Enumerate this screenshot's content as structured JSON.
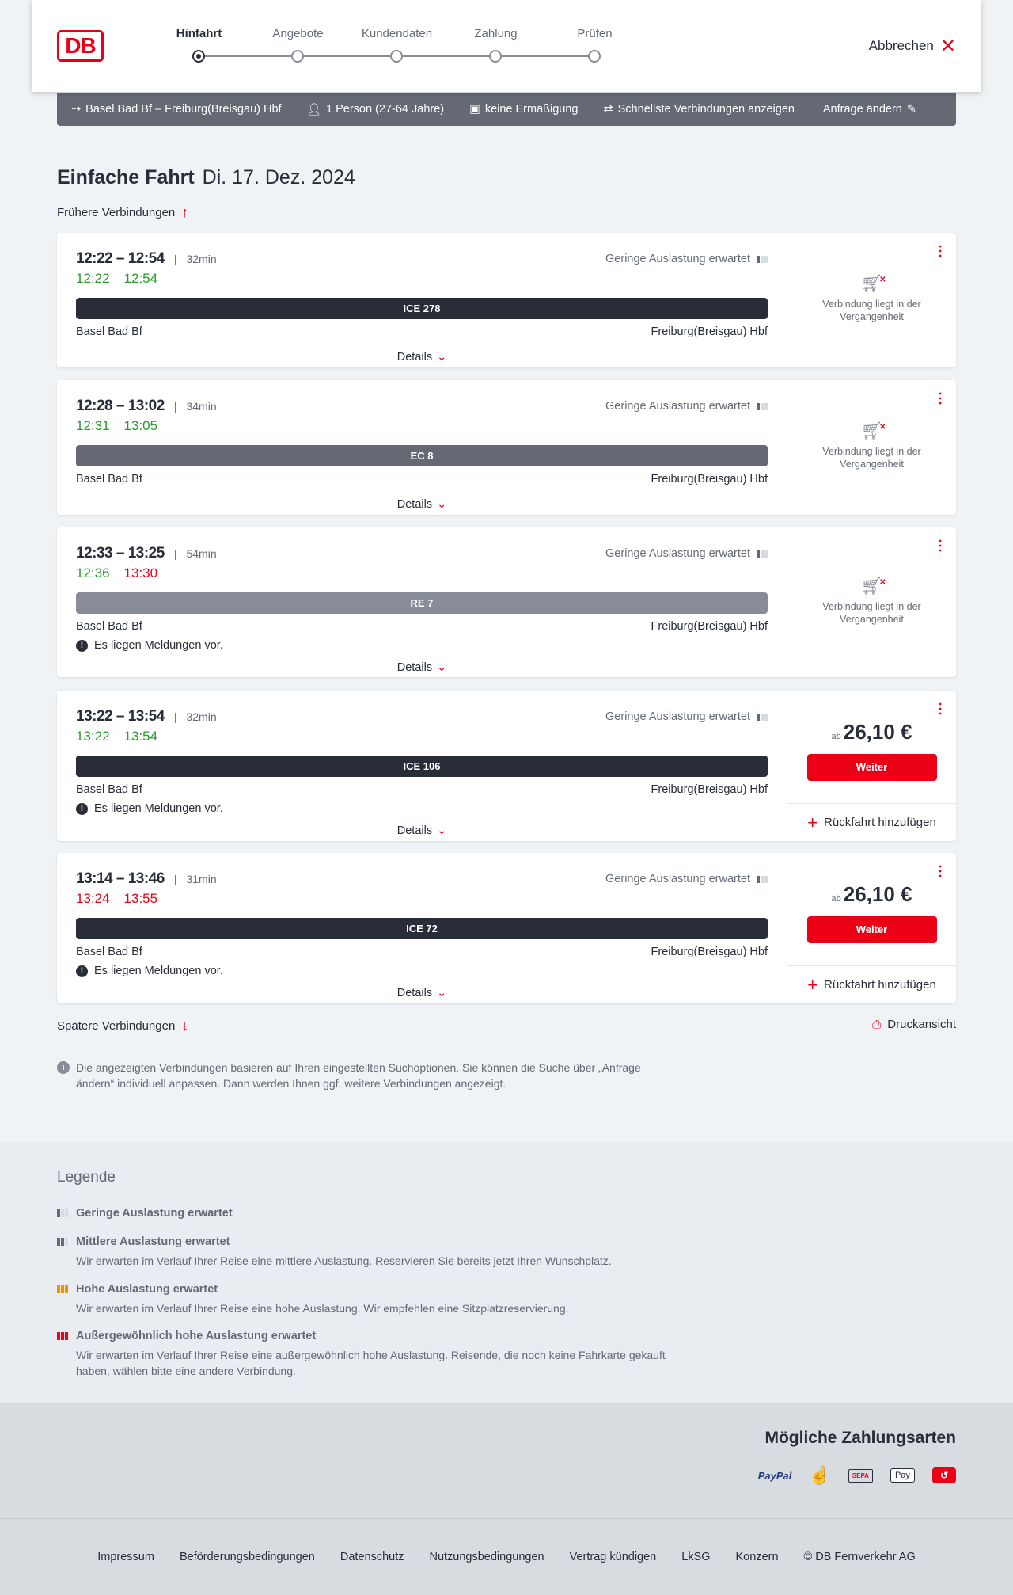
{
  "header": {
    "logo": "DB",
    "steps": [
      "Hinfahrt",
      "Angebote",
      "Kundendaten",
      "Zahlung",
      "Prüfen"
    ],
    "active_step": 0,
    "cancel": "Abbrechen"
  },
  "summary": {
    "route": "Basel Bad Bf – Freiburg(Breisgau) Hbf",
    "travellers": "1 Person (27-64 Jahre)",
    "discount": "keine Ermäßigung",
    "option": "Schnellste Verbindungen anzeigen",
    "edit": "Anfrage ändern"
  },
  "page": {
    "title": "Einfache Fahrt",
    "date": "Di. 17. Dez. 2024",
    "earlier": "Frühere Verbindungen",
    "later": "Spätere Verbindungen",
    "print": "Druckansicht",
    "info": "Die angezeigten Verbindungen basieren auf Ihren eingestellten Suchoptionen. Sie können die Suche über „Anfrage ändern“ individuell anpassen. Dann werden Ihnen ggf. weitere Verbindungen angezeigt."
  },
  "colors": {
    "accent": "#ec0016",
    "on_time": "#2a9a2a",
    "delayed": "#ec0016"
  },
  "connections": [
    {
      "times": "12:22 – 12:54",
      "duration": "32min",
      "rt_dep": "12:22",
      "rt_dep_status": "on_time",
      "rt_arr": "12:54",
      "rt_arr_status": "on_time",
      "train": "ICE 278",
      "train_color": "#282d37",
      "from": "Basel Bad Bf",
      "to": "Freiburg(Breisgau) Hbf",
      "occupancy": "Geringe Auslastung erwartet",
      "message": "",
      "details": "Details",
      "past": "Verbindung liegt in der Vergangenheit"
    },
    {
      "times": "12:28 – 13:02",
      "duration": "34min",
      "rt_dep": "12:31",
      "rt_dep_status": "on_time",
      "rt_arr": "13:05",
      "rt_arr_status": "on_time",
      "train": "EC 8",
      "train_color": "#646973",
      "from": "Basel Bad Bf",
      "to": "Freiburg(Breisgau) Hbf",
      "occupancy": "Geringe Auslastung erwartet",
      "message": "",
      "details": "Details",
      "past": "Verbindung liegt in der Vergangenheit"
    },
    {
      "times": "12:33 – 13:25",
      "duration": "54min",
      "rt_dep": "12:36",
      "rt_dep_status": "on_time",
      "rt_arr": "13:30",
      "rt_arr_status": "delayed",
      "train": "RE 7",
      "train_color": "#878c96",
      "from": "Basel Bad Bf",
      "to": "Freiburg(Breisgau) Hbf",
      "occupancy": "Geringe Auslastung erwartet",
      "message": "Es liegen Meldungen vor.",
      "details": "Details",
      "past": "Verbindung liegt in der Vergangenheit"
    },
    {
      "times": "13:22 – 13:54",
      "duration": "32min",
      "rt_dep": "13:22",
      "rt_dep_status": "on_time",
      "rt_arr": "13:54",
      "rt_arr_status": "on_time",
      "train": "ICE 106",
      "train_color": "#282d37",
      "from": "Basel Bad Bf",
      "to": "Freiburg(Breisgau) Hbf",
      "occupancy": "Geringe Auslastung erwartet",
      "message": "Es liegen Meldungen vor.",
      "details": "Details",
      "price_prefix": "ab",
      "price": "26,10 €",
      "button": "Weiter",
      "return": "Rückfahrt hinzufügen"
    },
    {
      "times": "13:14 – 13:46",
      "duration": "31min",
      "rt_dep": "13:24",
      "rt_dep_status": "delayed",
      "rt_arr": "13:55",
      "rt_arr_status": "delayed",
      "train": "ICE 72",
      "train_color": "#282d37",
      "from": "Basel Bad Bf",
      "to": "Freiburg(Breisgau) Hbf",
      "occupancy": "Geringe Auslastung erwartet",
      "message": "Es liegen Meldungen vor.",
      "details": "Details",
      "price_prefix": "ab",
      "price": "26,10 €",
      "button": "Weiter",
      "return": "Rückfahrt hinzufügen"
    }
  ],
  "legend": {
    "title": "Legende",
    "items": [
      {
        "title": "Geringe Auslastung erwartet",
        "text": "",
        "level": 1,
        "color": "#646973"
      },
      {
        "title": "Mittlere Auslastung erwartet",
        "text": "Wir erwarten im Verlauf Ihrer Reise eine mittlere Auslastung. Reservieren Sie bereits jetzt Ihren Wunschplatz.",
        "level": 2,
        "color": "#646973"
      },
      {
        "title": "Hohe Auslastung erwartet",
        "text": "Wir erwarten im Verlauf Ihrer Reise eine hohe Auslastung. Wir empfehlen eine Sitzplatzreservierung.",
        "level": 3,
        "color": "#f39200"
      },
      {
        "title": "Außergewöhnlich hohe Auslastung erwartet",
        "text": "Wir erwarten im Verlauf Ihrer Reise eine außergewöhnlich hohe Auslastung. Reisende, die noch keine Fahrkarte gekauft haben, wählen bitte eine andere Verbindung.",
        "level": 4,
        "color": "#ec0016"
      }
    ]
  },
  "payment": {
    "title": "Mögliche Zahlungsarten",
    "methods": [
      "PayPal",
      "Kreditkarte",
      "SEPA",
      "Apple Pay",
      "Ratenzahlung"
    ]
  },
  "footer": {
    "links": [
      "Impressum",
      "Beförderungsbedingungen",
      "Datenschutz",
      "Nutzungsbedingungen",
      "Vertrag kündigen",
      "LkSG",
      "Konzern",
      "© DB Fernverkehr AG"
    ]
  }
}
